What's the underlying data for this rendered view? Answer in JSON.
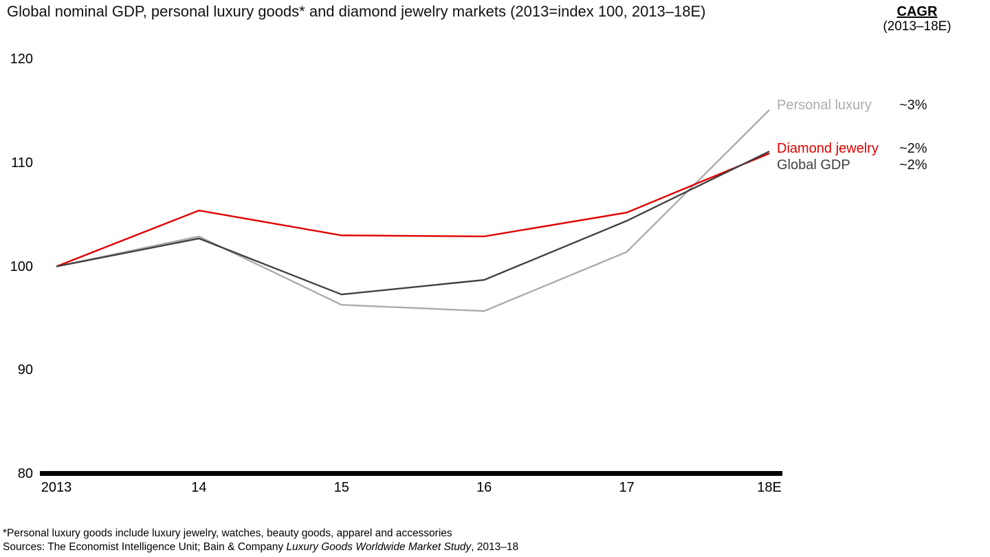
{
  "title": "Global nominal GDP, personal luxury goods* and diamond jewelry markets (2013=index 100, 2013–18E)",
  "cagr_header": {
    "label": "CAGR",
    "period": "(2013–18E)"
  },
  "chart_data": {
    "type": "line",
    "title": "Global nominal GDP, personal luxury goods and diamond jewelry markets",
    "x": [
      "2013",
      "14",
      "15",
      "16",
      "17",
      "18E"
    ],
    "yticks": [
      120,
      110,
      100,
      90,
      80
    ],
    "ylim": [
      80,
      120
    ],
    "grid": false,
    "legend_position": "right of line ends",
    "index_note": "2013=index 100",
    "series": [
      {
        "name": "Personal luxury",
        "cagr": "~3%",
        "color": "#ababab",
        "values": [
          100,
          102.9,
          96.3,
          95.7,
          101.4,
          115.1
        ]
      },
      {
        "name": "Diamond jewelry",
        "cagr": "~2%",
        "color": "#e00000",
        "values": [
          100,
          105.4,
          103.0,
          102.9,
          105.2,
          110.9
        ]
      },
      {
        "name": "Global GDP",
        "cagr": "~2%",
        "color": "#404040",
        "values": [
          100,
          102.7,
          97.3,
          98.7,
          104.4,
          111.1
        ]
      }
    ]
  },
  "footnotes": {
    "line1": "*Personal luxury goods include luxury jewelry, watches, beauty goods, apparel and accessories",
    "line2_prefix": "Sources: The Economist Intelligence Unit; Bain & Company ",
    "line2_italic": "Luxury Goods Worldwide Market Study",
    "line2_suffix": ", 2013–18"
  }
}
